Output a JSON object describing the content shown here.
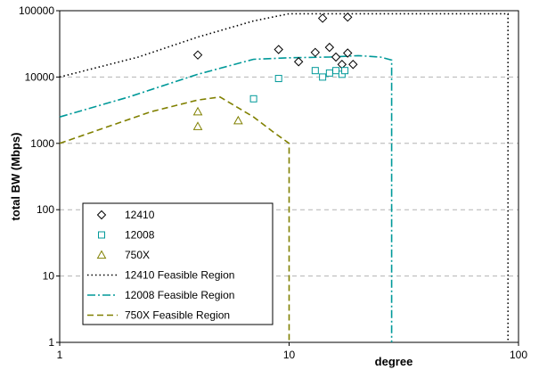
{
  "chart_data": {
    "type": "scatter",
    "title": "",
    "xlabel": "degree",
    "ylabel": "total BW (Mbps)",
    "x_scale": "log",
    "y_scale": "log",
    "xlim": [
      1,
      100
    ],
    "ylim": [
      1,
      100000
    ],
    "x_ticks": [
      1,
      10,
      100
    ],
    "y_ticks": [
      1,
      10,
      100,
      1000,
      10000,
      100000
    ],
    "x_tick_labels": [
      "1",
      "10",
      "100"
    ],
    "y_tick_labels": [
      "1",
      "10",
      "100",
      "1000",
      "10000",
      "100000"
    ],
    "grid": "horizontal dashed",
    "legend_position": "bottom-left",
    "series": [
      {
        "name": "12410",
        "kind": "marker",
        "marker": "diamond",
        "color": "#000000",
        "points": [
          [
            4,
            21500
          ],
          [
            9,
            26000
          ],
          [
            11,
            17000
          ],
          [
            13,
            23500
          ],
          [
            14,
            77000
          ],
          [
            15,
            28000
          ],
          [
            16,
            20000
          ],
          [
            17,
            15500
          ],
          [
            18,
            23000
          ],
          [
            18,
            80000
          ],
          [
            19,
            15500
          ]
        ]
      },
      {
        "name": "12008",
        "kind": "marker",
        "marker": "square",
        "color": "#009999",
        "points": [
          [
            7,
            4700
          ],
          [
            9,
            9500
          ],
          [
            13,
            12500
          ],
          [
            14,
            10000
          ],
          [
            15,
            11500
          ],
          [
            16,
            12500
          ],
          [
            17,
            11000
          ],
          [
            17.5,
            12500
          ]
        ]
      },
      {
        "name": "750X",
        "kind": "marker",
        "marker": "triangle",
        "color": "#808000",
        "points": [
          [
            4,
            3000
          ],
          [
            4,
            1800
          ],
          [
            6,
            2200
          ]
        ]
      },
      {
        "name": "12410 Feasible Region",
        "kind": "line",
        "dash": "dotted",
        "color": "#000000",
        "points": [
          [
            1,
            10000
          ],
          [
            2.2,
            20000
          ],
          [
            4,
            40000
          ],
          [
            7,
            70000
          ],
          [
            10,
            90000
          ],
          [
            16,
            90000
          ],
          [
            30,
            90000
          ],
          [
            60,
            90000
          ],
          [
            90,
            90000
          ],
          [
            90,
            1
          ]
        ]
      },
      {
        "name": "12008 Feasible Region",
        "kind": "line",
        "dash": "dash-dot",
        "color": "#009999",
        "points": [
          [
            1,
            2500
          ],
          [
            2,
            5000
          ],
          [
            4,
            11000
          ],
          [
            7,
            18500
          ],
          [
            10,
            19500
          ],
          [
            15,
            20000
          ],
          [
            20,
            21000
          ],
          [
            25,
            20000
          ],
          [
            28,
            18000
          ],
          [
            28,
            1
          ]
        ]
      },
      {
        "name": "750X Feasible Region",
        "kind": "line",
        "dash": "dashed",
        "color": "#808000",
        "points": [
          [
            1,
            1000
          ],
          [
            2.5,
            3000
          ],
          [
            4,
            4500
          ],
          [
            5,
            5000
          ],
          [
            7,
            2500
          ],
          [
            8.5,
            1500
          ],
          [
            10,
            1000
          ],
          [
            10,
            1
          ]
        ]
      }
    ]
  }
}
